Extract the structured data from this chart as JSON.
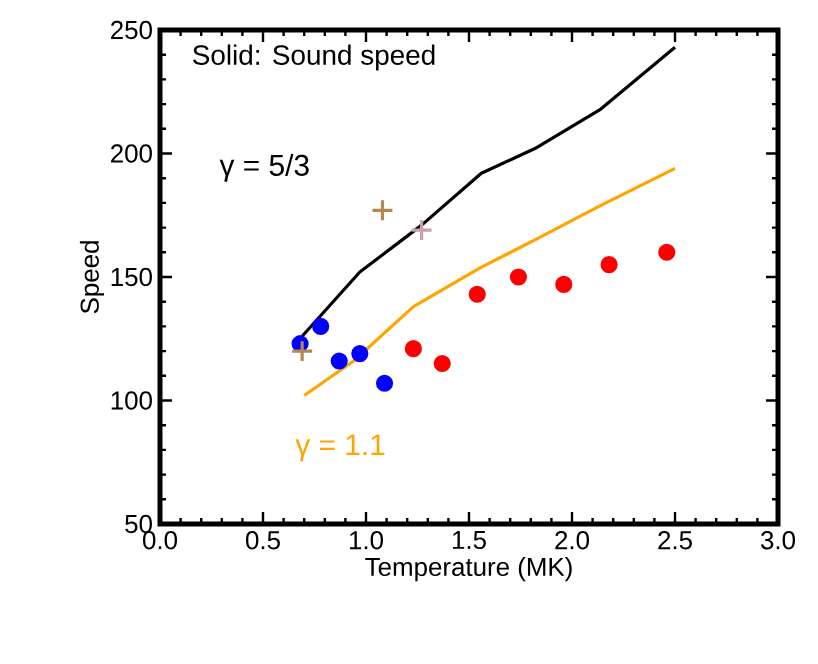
{
  "chart_data": {
    "type": "line",
    "xlabel": "Temperature (MK)",
    "ylabel": "Speed",
    "annotations": [
      "Solid: Sound speed"
    ],
    "xlim": [
      0,
      3
    ],
    "ylim": [
      50,
      250
    ],
    "xticks": [
      {
        "value": 0,
        "label": "0.0"
      },
      {
        "value": 0.5,
        "label": "0.5"
      },
      {
        "value": 1,
        "label": "1.0"
      },
      {
        "value": 1.5,
        "label": "1.5"
      },
      {
        "value": 2,
        "label": "2.0"
      },
      {
        "value": 2.5,
        "label": "2.5"
      },
      {
        "value": 3,
        "label": "3.0"
      }
    ],
    "yticks": [
      50,
      100,
      150,
      200,
      250
    ],
    "grid": false,
    "line_style": "solid",
    "series": [
      {
        "name": "γ = 5/3",
        "color": "#000000",
        "x": [
          0.69,
          0.97,
          1.27,
          1.56,
          1.82,
          2.14,
          2.5
        ],
        "values": [
          126,
          152,
          171,
          192,
          202,
          218,
          243
        ]
      },
      {
        "name": "γ = 1.1",
        "color": "#ffa500",
        "x": [
          0.7,
          0.94,
          1.23,
          1.56,
          1.82,
          2.14,
          2.5
        ],
        "values": [
          102,
          116,
          138,
          154,
          165,
          179,
          194
        ]
      },
      {
        "type": "scatter",
        "marker": "circle",
        "color": "#0000ff",
        "x": [
          0.68,
          0.78,
          0.87,
          0.97,
          1.09
        ],
        "values": [
          123,
          130,
          116,
          119,
          107
        ]
      },
      {
        "type": "scatter",
        "marker": "circle",
        "color": "#ff0000",
        "x": [
          1.23,
          1.37,
          1.54,
          1.74,
          1.96,
          2.18,
          2.46
        ],
        "values": [
          121,
          115,
          143,
          150,
          147,
          155,
          160
        ]
      },
      {
        "type": "scatter",
        "marker": "cross",
        "color": "#b08850",
        "x": [
          0.69,
          1.08
        ],
        "values": [
          120,
          177
        ]
      },
      {
        "type": "scatter",
        "marker": "cross",
        "color": "#c8a0b0",
        "x": [
          1.27
        ],
        "values": [
          169
        ]
      }
    ]
  }
}
